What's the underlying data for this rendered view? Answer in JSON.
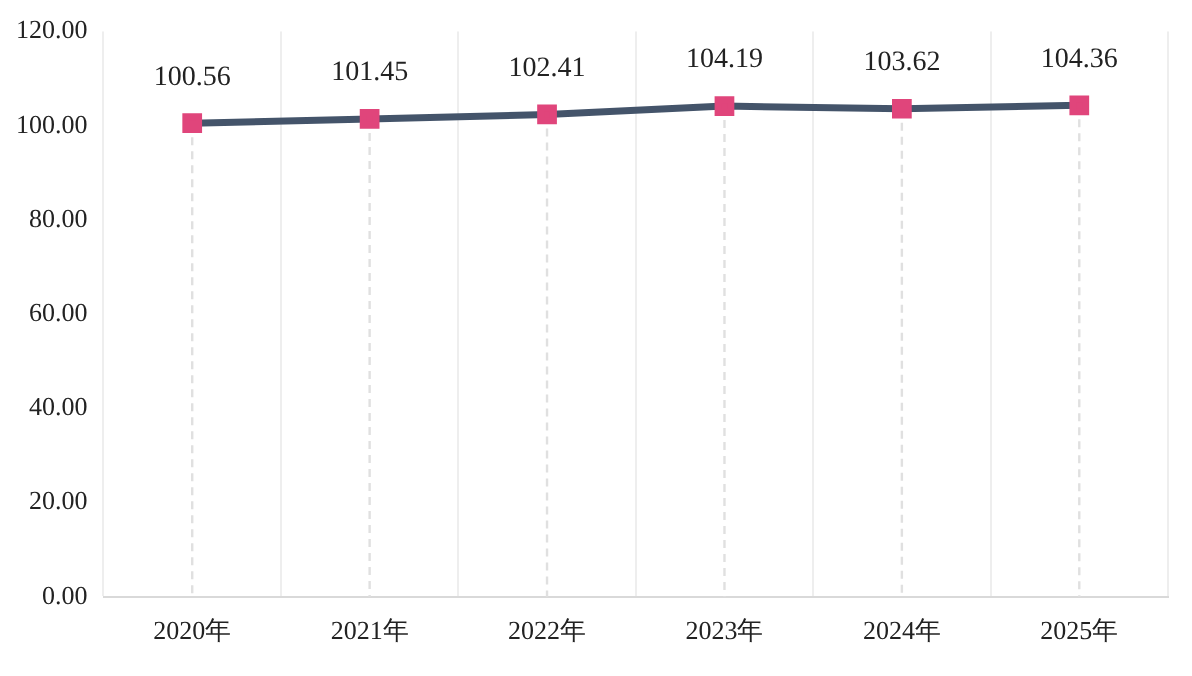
{
  "chart_data": {
    "type": "line",
    "categories": [
      "2020年",
      "2021年",
      "2022年",
      "2023年",
      "2024年",
      "2025年"
    ],
    "series": [
      {
        "color": "#44546a",
        "colors": [
          "#e0457b",
          "#e0457b",
          "#e0457b",
          "#e0457b",
          "#e0457b",
          "#e0457b"
        ],
        "values": [
          100.56,
          101.45,
          102.41,
          104.19,
          103.62,
          104.36
        ]
      }
    ],
    "ylim": [
      0,
      120
    ],
    "yticks": [
      {
        "value": 0,
        "label": "0.00"
      },
      {
        "value": 20,
        "label": "20.00"
      },
      {
        "value": 40,
        "label": "40.00"
      },
      {
        "value": 60,
        "label": "60.00"
      },
      {
        "value": 80,
        "label": "80.00"
      },
      {
        "value": 100,
        "label": "100.00"
      },
      {
        "value": 120,
        "label": "120.00"
      }
    ],
    "grid": "x",
    "legend": false,
    "marker": "square",
    "line_style": "solid",
    "data_labels": true
  }
}
